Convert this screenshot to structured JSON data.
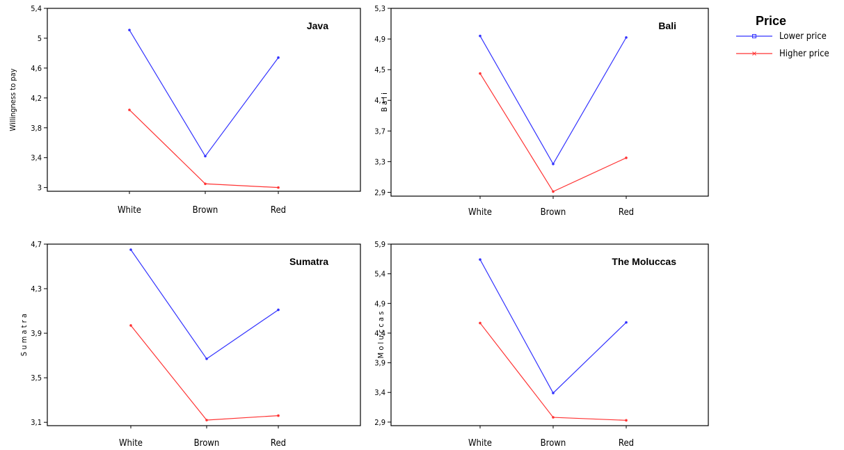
{
  "chart_data": [
    {
      "type": "line",
      "title": "Java",
      "ylabel": "Willingness to pay",
      "categories": [
        "White",
        "Brown",
        "Red"
      ],
      "yticks": [
        "5,4",
        "5",
        "4,6",
        "4,2",
        "3,8",
        "3,4",
        "3"
      ],
      "ylim": [
        2.95,
        5.4
      ],
      "series": [
        {
          "name": "Lower price",
          "color": "#3333ff",
          "values": [
            5.11,
            3.42,
            4.74
          ]
        },
        {
          "name": "Higher price",
          "color": "#ff3333",
          "values": [
            4.04,
            3.05,
            3.0
          ]
        }
      ]
    },
    {
      "type": "line",
      "title": "Bali",
      "ylabel": "B a l i",
      "categories": [
        "White",
        "Brown",
        "Red"
      ],
      "yticks": [
        "5,3",
        "4,9",
        "4,5",
        "4,1",
        "3,7",
        "3,3",
        "2,9"
      ],
      "ylim": [
        2.85,
        5.3
      ],
      "series": [
        {
          "name": "Lower price",
          "color": "#3333ff",
          "values": [
            4.94,
            3.27,
            4.92
          ]
        },
        {
          "name": "Higher price",
          "color": "#ff3333",
          "values": [
            4.45,
            2.91,
            3.35
          ]
        }
      ]
    },
    {
      "type": "line",
      "title": "Sumatra",
      "ylabel": "S u m a t r a",
      "categories": [
        "White",
        "Brown",
        "Red"
      ],
      "yticks": [
        "4,7",
        "4,3",
        "3,9",
        "3,5",
        "3,1"
      ],
      "ylim": [
        3.07,
        4.7
      ],
      "series": [
        {
          "name": "Lower price",
          "color": "#3333ff",
          "values": [
            4.65,
            3.67,
            4.11
          ]
        },
        {
          "name": "Higher price",
          "color": "#ff3333",
          "values": [
            3.97,
            3.12,
            3.16
          ]
        }
      ]
    },
    {
      "type": "line",
      "title": "The Moluccas",
      "ylabel": "M o l u c c a s",
      "categories": [
        "White",
        "Brown",
        "Red"
      ],
      "yticks": [
        "5,9",
        "5,4",
        "4,9",
        "4,4",
        "3,9",
        "3,4",
        "2,9"
      ],
      "ylim": [
        2.84,
        5.9
      ],
      "series": [
        {
          "name": "Lower price",
          "color": "#3333ff",
          "values": [
            5.64,
            3.39,
            4.58
          ]
        },
        {
          "name": "Higher price",
          "color": "#ff3333",
          "values": [
            4.57,
            2.98,
            2.93
          ]
        }
      ]
    }
  ],
  "legend": {
    "title": "Price",
    "items": [
      {
        "label": "Lower price",
        "color": "#3333ff",
        "marker": "square"
      },
      {
        "label": "Higher price",
        "color": "#ff3333",
        "marker": "x"
      }
    ]
  }
}
